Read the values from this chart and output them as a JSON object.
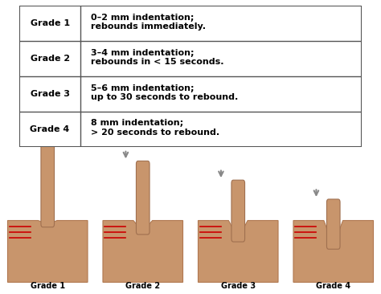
{
  "table_data": [
    [
      "Grade 1",
      "0–2 mm indentation;\nrebounds immediately."
    ],
    [
      "Grade 2",
      "3–4 mm indentation;\nrebounds in < 15 seconds."
    ],
    [
      "Grade 3",
      "5–6 mm indentation;\nup to 30 seconds to rebound."
    ],
    [
      "Grade 4",
      "8 mm indentation;\n> 20 seconds to rebound."
    ]
  ],
  "grade_labels": [
    "Grade 1",
    "Grade 2",
    "Grade 3",
    "Grade 4"
  ],
  "bg_color": "#ffffff",
  "table_border_color": "#555555",
  "skin_color": "#c8956c",
  "skin_dark": "#b07850",
  "finger_color": "#c8956c",
  "finger_dark": "#a07050",
  "red_line_color": "#cc0000",
  "arrow_color": "#888888",
  "label_fontsize": 7,
  "table_fontsize": 8,
  "indent_depths": [
    0.05,
    0.15,
    0.25,
    0.35
  ]
}
